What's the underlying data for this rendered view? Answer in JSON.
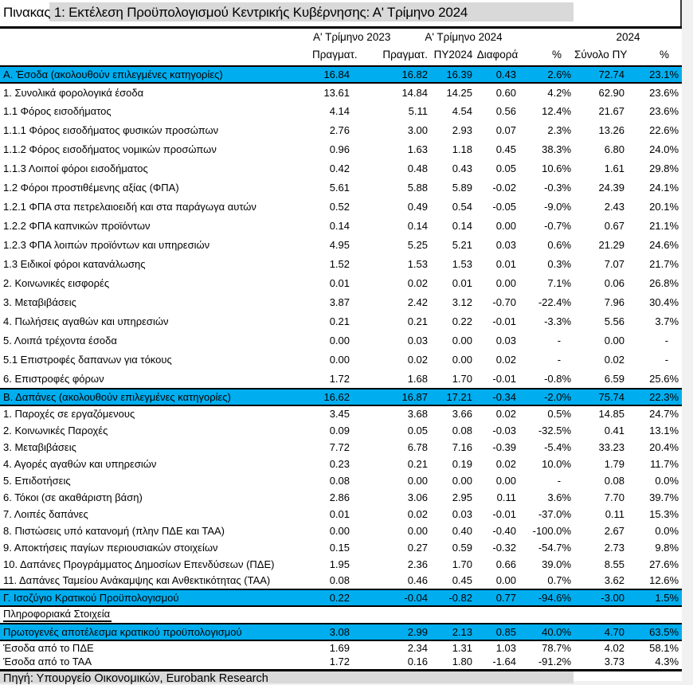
{
  "title": {
    "prefix": "Πινακας",
    "rest": " 1: Εκτέλεση Προϋπολογισμού Κεντρικής Κυβέρνησης: Α' Τρίμηνο 2024"
  },
  "columns": {
    "groups": [
      {
        "label": "Α' Τρίμηνο 2023",
        "span": 1
      },
      {
        "label": "Α' Τρίμηνο 2024",
        "span": 4
      },
      {
        "label": "2024",
        "span": 2
      }
    ],
    "subheaders": [
      "Πραγματ.",
      "Πραγματ.",
      "ΠΥ2024",
      "Διαφορά",
      "%",
      "Σύνολο ΠΥ",
      "%"
    ]
  },
  "rows": [
    {
      "label": "Α. Έσοδα (ακολουθούν επιλεγμένες κατηγορίες)",
      "style": "blue",
      "values": [
        "16.84",
        "16.82",
        "16.39",
        "0.43",
        "2.6%",
        "72.74",
        "23.1%"
      ]
    },
    {
      "label": "1. Συνολικά φορολογικά έσοδα",
      "style": "a",
      "values": [
        "13.61",
        "14.84",
        "14.25",
        "0.60",
        "4.2%",
        "62.90",
        "23.6%"
      ]
    },
    {
      "label": "1.1 Φόρος εισοδήματος",
      "style": "a",
      "values": [
        "4.14",
        "5.11",
        "4.54",
        "0.56",
        "12.4%",
        "21.67",
        "23.6%"
      ]
    },
    {
      "label": "1.1.1 Φόρος εισοδήματος φυσικών προσώπων",
      "style": "a",
      "values": [
        "2.76",
        "3.00",
        "2.93",
        "0.07",
        "2.3%",
        "13.26",
        "22.6%"
      ]
    },
    {
      "label": "1.1.2 Φόρος εισοδήματος νομικών προσώπων",
      "style": "a",
      "values": [
        "0.96",
        "1.63",
        "1.18",
        "0.45",
        "38.3%",
        "6.80",
        "24.0%"
      ]
    },
    {
      "label": "1.1.3 Λοιποί φόροι εισοδήματος",
      "style": "a",
      "values": [
        "0.42",
        "0.48",
        "0.43",
        "0.05",
        "10.6%",
        "1.61",
        "29.8%"
      ]
    },
    {
      "label": "1.2 Φόροι προστιθέμενης αξίας (ΦΠΑ)",
      "style": "a",
      "values": [
        "5.61",
        "5.88",
        "5.89",
        "-0.02",
        "-0.3%",
        "24.39",
        "24.1%"
      ]
    },
    {
      "label": "1.2.1 ΦΠΑ στα πετρελαιοειδή και στα παράγωγα αυτών",
      "style": "a",
      "values": [
        "0.52",
        "0.49",
        "0.54",
        "-0.05",
        "-9.0%",
        "2.43",
        "20.1%"
      ]
    },
    {
      "label": "1.2.2 ΦΠΑ καπνικών προϊόντων",
      "style": "a",
      "values": [
        "0.14",
        "0.14",
        "0.14",
        "0.00",
        "-0.7%",
        "0.67",
        "21.1%"
      ]
    },
    {
      "label": "1.2.3 ΦΠΑ λοιπών προϊόντων και υπηρεσιών",
      "style": "a",
      "values": [
        "4.95",
        "5.25",
        "5.21",
        "0.03",
        "0.6%",
        "21.29",
        "24.6%"
      ]
    },
    {
      "label": "1.3 Ειδικοί φόροι κατανάλωσης",
      "style": "a",
      "values": [
        "1.52",
        "1.53",
        "1.53",
        "0.01",
        "0.3%",
        "7.07",
        "21.7%"
      ]
    },
    {
      "label": "2. Κοινωνικές εισφορές",
      "style": "a",
      "values": [
        "0.01",
        "0.02",
        "0.01",
        "0.00",
        "7.1%",
        "0.06",
        "26.8%"
      ]
    },
    {
      "label": "3. Μεταβιβάσεις",
      "style": "a",
      "values": [
        "3.87",
        "2.42",
        "3.12",
        "-0.70",
        "-22.4%",
        "7.96",
        "30.4%"
      ]
    },
    {
      "label": "4. Πωλήσεις αγαθών και υπηρεσιών",
      "style": "a",
      "values": [
        "0.21",
        "0.21",
        "0.22",
        "-0.01",
        "-3.3%",
        "5.56",
        "3.7%"
      ]
    },
    {
      "label": "5. Λοιπά τρέχοντα έσοδα",
      "style": "a",
      "values": [
        "0.00",
        "0.03",
        "0.00",
        "0.03",
        "-",
        "0.00",
        "-"
      ]
    },
    {
      "label": "5.1 Επιστροφές δαπανων για τόκους",
      "style": "a",
      "values": [
        "0.00",
        "0.02",
        "0.00",
        "0.02",
        "-",
        "0.02",
        "-"
      ]
    },
    {
      "label": "6. Επιστροφές φόρων",
      "style": "a",
      "values": [
        "1.72",
        "1.68",
        "1.70",
        "-0.01",
        "-0.8%",
        "6.59",
        "25.6%"
      ]
    },
    {
      "label": "Β. Δαπάνες (ακολουθούν επιλεγμένες κατηγορίες)",
      "style": "blue",
      "values": [
        "16.62",
        "16.87",
        "17.21",
        "-0.34",
        "-2.0%",
        "75.74",
        "22.3%"
      ]
    },
    {
      "label": "1. Παροχές σε εργαζόμενους",
      "style": "b",
      "values": [
        "3.45",
        "3.68",
        "3.66",
        "0.02",
        "0.5%",
        "14.85",
        "24.7%"
      ]
    },
    {
      "label": "2. Κοινωνικές Παροχές",
      "style": "b",
      "values": [
        "0.09",
        "0.05",
        "0.08",
        "-0.03",
        "-32.5%",
        "0.41",
        "13.1%"
      ]
    },
    {
      "label": "3. Μεταβιβάσεις",
      "style": "b",
      "values": [
        "7.72",
        "6.78",
        "7.16",
        "-0.39",
        "-5.4%",
        "33.23",
        "20.4%"
      ]
    },
    {
      "label": "4. Αγορές αγαθών και υπηρεσιών",
      "style": "b",
      "values": [
        "0.23",
        "0.21",
        "0.19",
        "0.02",
        "10.0%",
        "1.79",
        "11.7%"
      ]
    },
    {
      "label": "5. Επιδοτήσεις",
      "style": "b",
      "values": [
        "0.08",
        "0.00",
        "0.00",
        "0.00",
        "-",
        "0.08",
        "0.0%"
      ]
    },
    {
      "label": "6. Τόκοι (σε ακαθάριστη βάση)",
      "style": "b",
      "values": [
        "2.86",
        "3.06",
        "2.95",
        "0.11",
        "3.6%",
        "7.70",
        "39.7%"
      ]
    },
    {
      "label": "7. Λοιπές δαπάνες",
      "style": "b",
      "values": [
        "0.01",
        "0.02",
        "0.03",
        "-0.01",
        "-37.0%",
        "0.11",
        "15.3%"
      ]
    },
    {
      "label": "8. Πιστώσεις υπό κατανομή (πλην ΠΔΕ και ΤΑΑ)",
      "style": "b",
      "values": [
        "0.00",
        "0.00",
        "0.40",
        "-0.40",
        "-100.0%",
        "2.67",
        "0.0%"
      ]
    },
    {
      "label": "9. Αποκτήσεις παγίων περιουσιακών στοιχείων",
      "style": "b",
      "values": [
        "0.15",
        "0.27",
        "0.59",
        "-0.32",
        "-54.7%",
        "2.73",
        "9.8%"
      ]
    },
    {
      "label": "10. Δαπάνες Προγράμματος Δημοσίων Επενδύσεων (ΠΔΕ)",
      "style": "b",
      "values": [
        "1.95",
        "2.36",
        "1.70",
        "0.66",
        "39.0%",
        "8.55",
        "27.6%"
      ]
    },
    {
      "label": "11. Δαπάνες Ταμείου Ανάκαμψης και Ανθεκτικότητας (ΤΑΑ)",
      "style": "b",
      "values": [
        "0.08",
        "0.46",
        "0.45",
        "0.00",
        "0.7%",
        "3.62",
        "12.6%"
      ]
    },
    {
      "label": "Γ. Ισοζύγιο Κρατικού Προϋπολογισμού",
      "style": "blue",
      "values": [
        "0.22",
        "-0.04",
        "-0.82",
        "0.77",
        "-94.6%",
        "-3.00",
        "1.5%"
      ]
    },
    {
      "label": "Πληροφοριακά Στοιχεία",
      "style": "info",
      "values": []
    },
    {
      "label": "Πρωτογενές αποτέλεσμα κρατικού προϋπολογισμού",
      "style": "blue",
      "values": [
        "3.08",
        "2.99",
        "2.13",
        "0.85",
        "40.0%",
        "4.70",
        "63.5%"
      ]
    },
    {
      "label": "Έσοδα από το ΠΔΕ",
      "style": "c",
      "values": [
        "1.69",
        "2.34",
        "1.31",
        "1.03",
        "78.7%",
        "4.02",
        "58.1%"
      ]
    },
    {
      "label": "Έσοδα από το ΤΑΑ",
      "style": "c",
      "values": [
        "1.72",
        "0.16",
        "1.80",
        "-1.64",
        "-91.2%",
        "3.73",
        "4.3%"
      ]
    }
  ],
  "source": "Πηγή: Υπουργείο Οικονομικών, Eurobank Research",
  "colors": {
    "highlight_blue": "#00aeef",
    "highlight_gray": "#d9d9d9",
    "page_background": "#f1f1f1",
    "table_background": "#ffffff",
    "text": "#000000"
  }
}
